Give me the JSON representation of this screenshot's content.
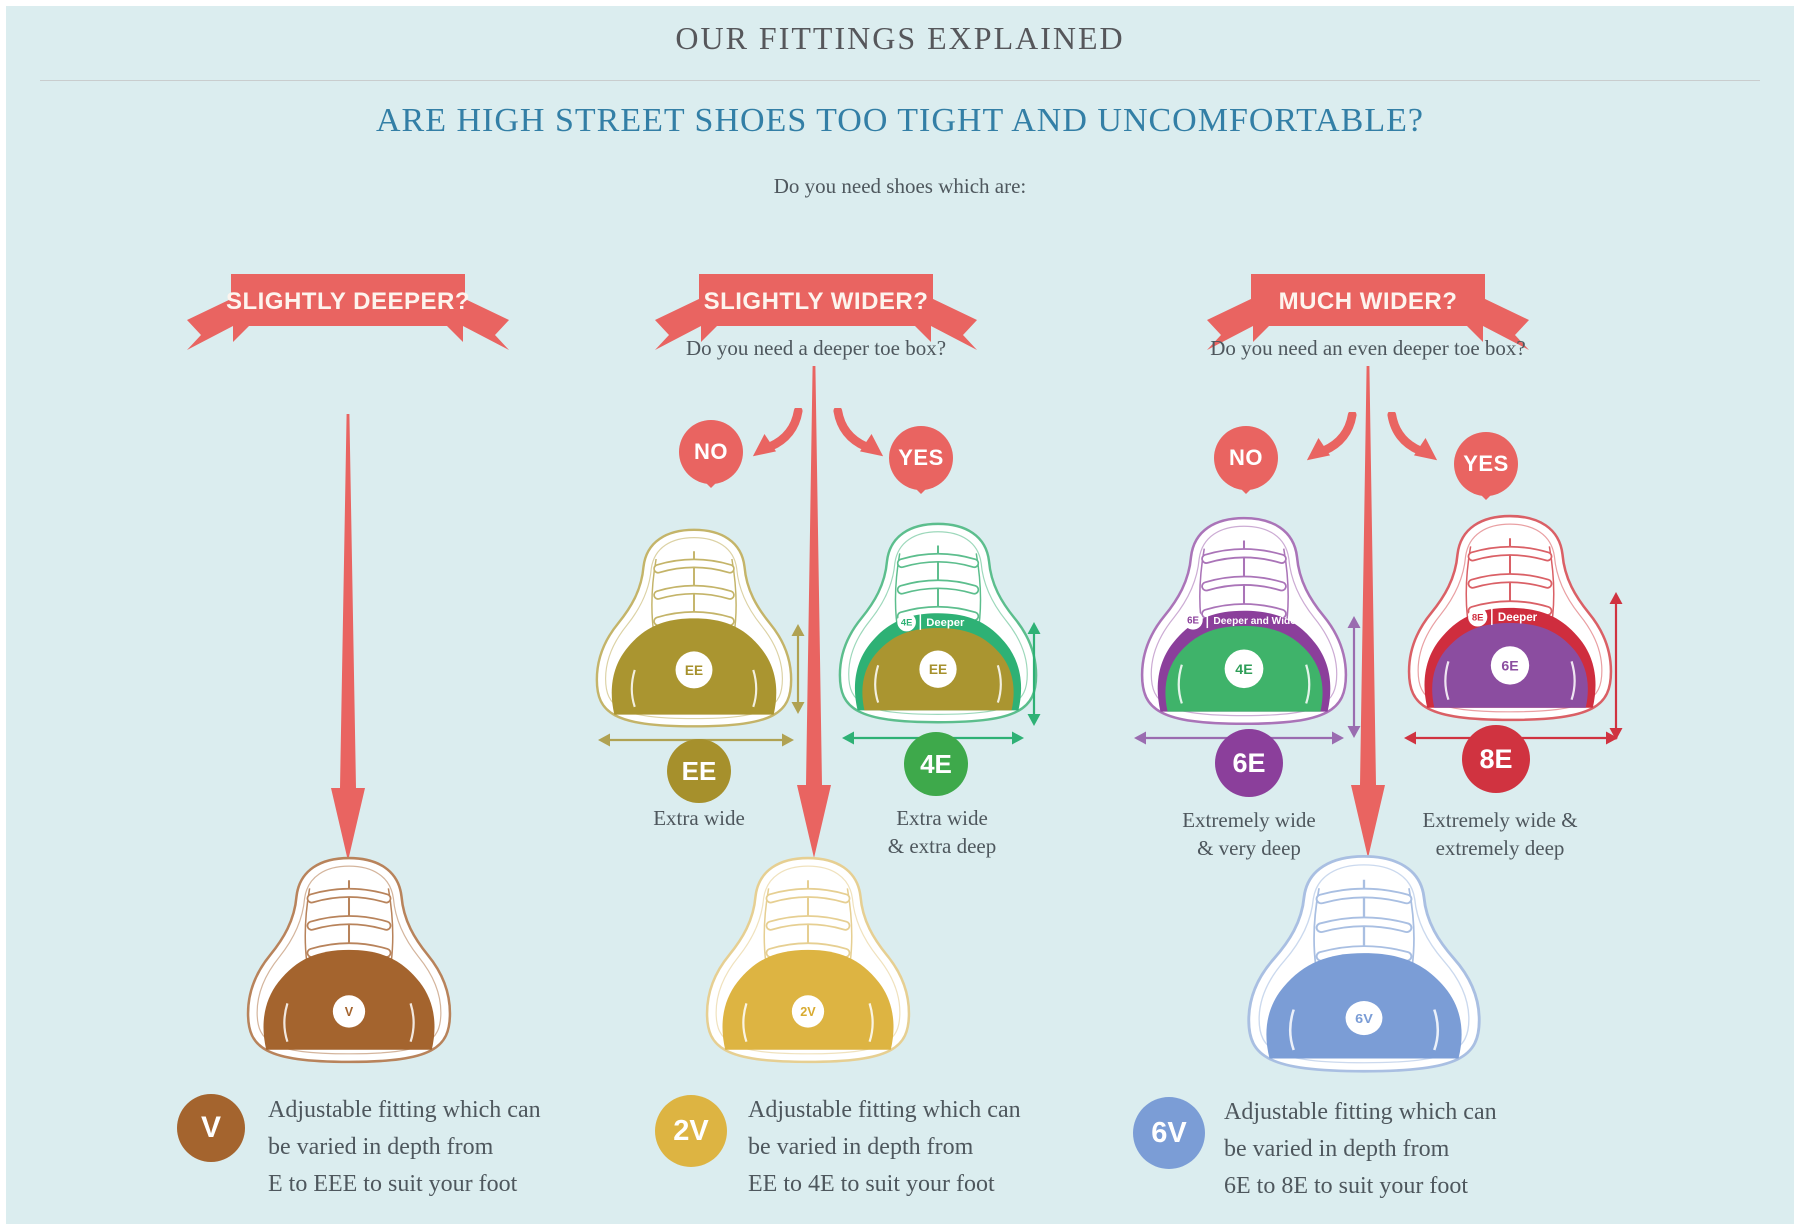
{
  "header": {
    "title": "OUR FITTINGS EXPLAINED",
    "subtitle": "ARE HIGH STREET SHOES TOO TIGHT AND UNCOMFORTABLE?",
    "prompt": "Do you need shoes which are:"
  },
  "colors": {
    "background": "#dbedef",
    "coral": "#e96461",
    "title_text": "#56575b",
    "subtitle_text": "#337fa6",
    "body_text": "#4e575d",
    "olive": "#a6902c",
    "grass_green": "#3ea94b",
    "band_green": "#2eb175",
    "purple": "#8b3f9b",
    "purple_soft": "#9a6cb0",
    "crimson": "#d03340",
    "brown": "#a4642e",
    "gold": "#ddb442",
    "blue": "#7b9dd6"
  },
  "columns": [
    {
      "ribbon": "SLIGHTLY DEEPER?",
      "result": {
        "badge": "V",
        "lines": [
          "Adjustable fitting which can",
          "be varied in depth from",
          "E to EEE to suit your foot"
        ]
      }
    },
    {
      "ribbon": "SLIGHTLY WIDER?",
      "question": "Do you need a deeper toe box?",
      "no_label": "NO",
      "yes_label": "YES",
      "options": [
        {
          "label": "EE",
          "caption": [
            "Extra wide"
          ]
        },
        {
          "label": "4E",
          "caption": [
            "Extra wide",
            "& extra deep"
          ]
        }
      ],
      "result": {
        "badge": "2V",
        "lines": [
          "Adjustable fitting which can",
          "be varied in depth from",
          "EE to 4E to suit your foot"
        ]
      }
    },
    {
      "ribbon": "MUCH WIDER?",
      "question": "Do you need an even deeper toe box?",
      "no_label": "NO",
      "yes_label": "YES",
      "options": [
        {
          "label": "6E",
          "caption": [
            "Extremely wide",
            "& very deep"
          ]
        },
        {
          "label": "8E",
          "caption": [
            "Extremely wide &",
            "extremely deep"
          ]
        }
      ],
      "result": {
        "badge": "6V",
        "lines": [
          "Adjustable fitting which can",
          "be varied in depth from",
          "6E to 8E to suit your foot"
        ]
      }
    }
  ],
  "shoes": {
    "ee": {
      "outline": "#c4b469",
      "dome": "#aa9530",
      "badge_color": "#a6902c",
      "inner_badge": "EE",
      "big": true
    },
    "e4": {
      "outline": "#5cbe8d",
      "dome": "#aa9530",
      "badge_color": "#a6902c",
      "inner_badge": "EE",
      "big": true,
      "band": {
        "color": "#2eb175",
        "badge": "4E",
        "text": "Deeper"
      }
    },
    "e6": {
      "outline": "#aa74b8",
      "dome": "#3fb36a",
      "badge_color": "#2f9e58",
      "inner_badge": "4E",
      "big": true,
      "band": {
        "color": "#8b3f9b",
        "badge": "6E",
        "text": "Deeper and Wider"
      }
    },
    "e8": {
      "outline": "#da6066",
      "dome": "#8b4da0",
      "badge_color": "#8b4da0",
      "inner_badge": "6E",
      "big": true,
      "band": {
        "color": "#cf2d3e",
        "badge": "8E",
        "text": "Deeper"
      }
    },
    "v": {
      "outline": "#b8835b",
      "dome": "#a4642e",
      "badge_color": "#a4642e",
      "inner_badge": "V"
    },
    "v2": {
      "outline": "#e6cf92",
      "dome": "#ddb442",
      "badge_color": "#d8ab32",
      "inner_badge": "2V"
    },
    "v6": {
      "outline": "#a9bfe2",
      "dome": "#7b9dd6",
      "badge_color": "#7b9dd6",
      "inner_badge": "6V"
    }
  }
}
